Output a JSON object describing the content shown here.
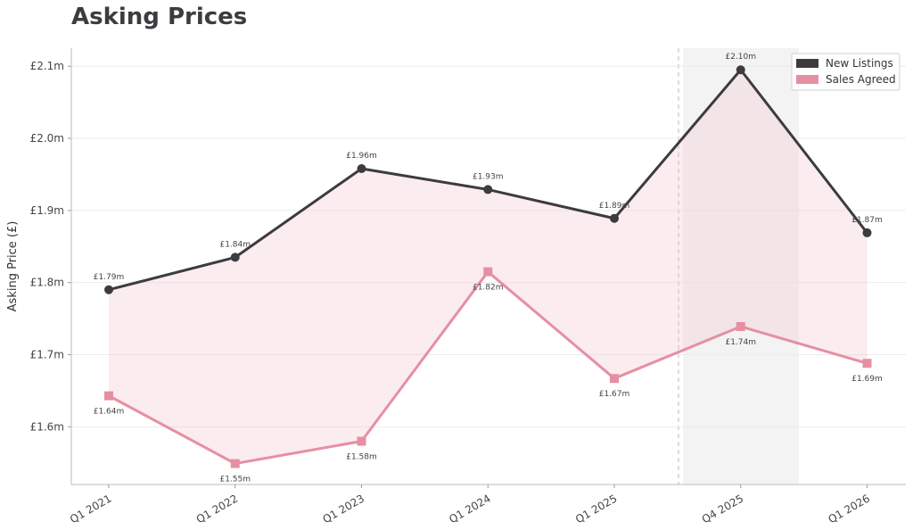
{
  "chart_data": {
    "type": "line",
    "title": "Asking Prices",
    "xlabel": "",
    "ylabel": "Asking Price (£)",
    "categories": [
      "Q1 2021",
      "Q1 2022",
      "Q1 2023",
      "Q1 2024",
      "Q1 2025",
      "Q4 2025",
      "Q1 2026"
    ],
    "ylim": [
      1.52,
      2.125
    ],
    "yticks": [
      1.6,
      1.7,
      1.8,
      1.9,
      2.0,
      2.1
    ],
    "ytick_labels": [
      "£1.6m",
      "£1.7m",
      "£1.8m",
      "£1.9m",
      "£2.0m",
      "£2.1m"
    ],
    "grid": true,
    "legend_position": "top-right",
    "highlight_category": "Q4 2025",
    "series": [
      {
        "name": "New Listings",
        "color": "#3d3b3f",
        "marker": "circle",
        "values": [
          1.79,
          1.835,
          1.958,
          1.929,
          1.889,
          2.095,
          1.869
        ],
        "labels": [
          "£1.79m",
          "£1.84m",
          "£1.96m",
          "£1.93m",
          "£1.89m",
          "£2.10m",
          "£1.87m"
        ]
      },
      {
        "name": "Sales Agreed",
        "color": "#e68fa3",
        "marker": "square",
        "values": [
          1.643,
          1.549,
          1.58,
          1.815,
          1.667,
          1.739,
          1.688
        ],
        "labels": [
          "£1.64m",
          "£1.55m",
          "£1.58m",
          "£1.82m",
          "£1.67m",
          "£1.74m",
          "£1.69m"
        ]
      }
    ],
    "fill_between": {
      "color": "#f3c3d1"
    }
  }
}
